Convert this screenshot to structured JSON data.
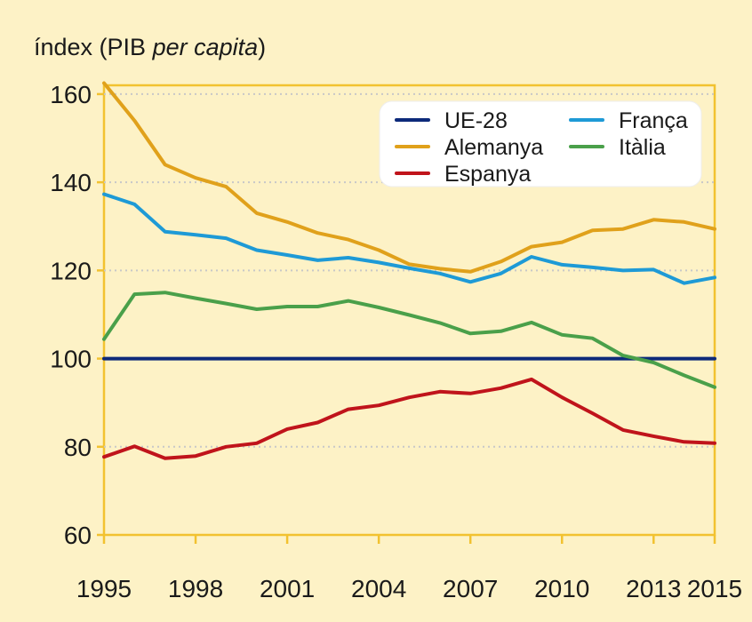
{
  "chart_data": {
    "type": "line",
    "ylabel_main": "índex (PIB ",
    "ylabel_italic": "per capita",
    "ylabel_close": ")",
    "ylim": [
      60,
      162
    ],
    "yticks": [
      60,
      80,
      100,
      120,
      140,
      160
    ],
    "xlim": [
      1995,
      2015
    ],
    "xticks": [
      1995,
      1998,
      2001,
      2004,
      2007,
      2010,
      2013,
      2015
    ],
    "grid": "horizontal dotted",
    "legend_position": "top-right",
    "x": [
      1995,
      1996,
      1997,
      1998,
      1999,
      2000,
      2001,
      2002,
      2003,
      2004,
      2005,
      2006,
      2007,
      2008,
      2009,
      2010,
      2011,
      2012,
      2013,
      2014,
      2015
    ],
    "series": [
      {
        "name": "UE-28",
        "color": "#0d2a7a",
        "values": [
          100,
          100,
          100,
          100,
          100,
          100,
          100,
          100,
          100,
          100,
          100,
          100,
          100,
          100,
          100,
          100,
          100,
          100,
          100,
          100,
          100
        ]
      },
      {
        "name": "Alemanya",
        "color": "#e0a11b",
        "values": [
          162.5,
          154,
          144,
          141,
          139,
          133,
          131,
          128.5,
          127,
          124.6,
          121.4,
          120.4,
          119.7,
          122,
          125.4,
          126.4,
          129.1,
          129.4,
          131.5,
          131,
          129.4
        ]
      },
      {
        "name": "Espanya",
        "color": "#c0141b",
        "values": [
          77.7,
          80.1,
          77.4,
          77.9,
          80,
          80.8,
          84,
          85.5,
          88.5,
          89.4,
          91.2,
          92.5,
          92.1,
          93.3,
          95.3,
          91.2,
          87.6,
          83.8,
          82.4,
          81.1,
          80.8
        ]
      },
      {
        "name": "França",
        "color": "#1e9ad6",
        "values": [
          137.3,
          135,
          128.8,
          128.1,
          127.3,
          124.6,
          123.5,
          122.3,
          122.9,
          121.8,
          120.5,
          119.3,
          117.4,
          119.3,
          123.1,
          121.3,
          120.7,
          120,
          120.2,
          117.1,
          118.4
        ]
      },
      {
        "name": "Itàlia",
        "color": "#4aa04a",
        "values": [
          104.4,
          114.6,
          115,
          113.7,
          112.5,
          111.2,
          111.8,
          111.8,
          113.1,
          111.6,
          109.9,
          108.1,
          105.7,
          106.2,
          108.2,
          105.4,
          104.6,
          100.7,
          99.1,
          96.2,
          93.5
        ]
      }
    ]
  }
}
